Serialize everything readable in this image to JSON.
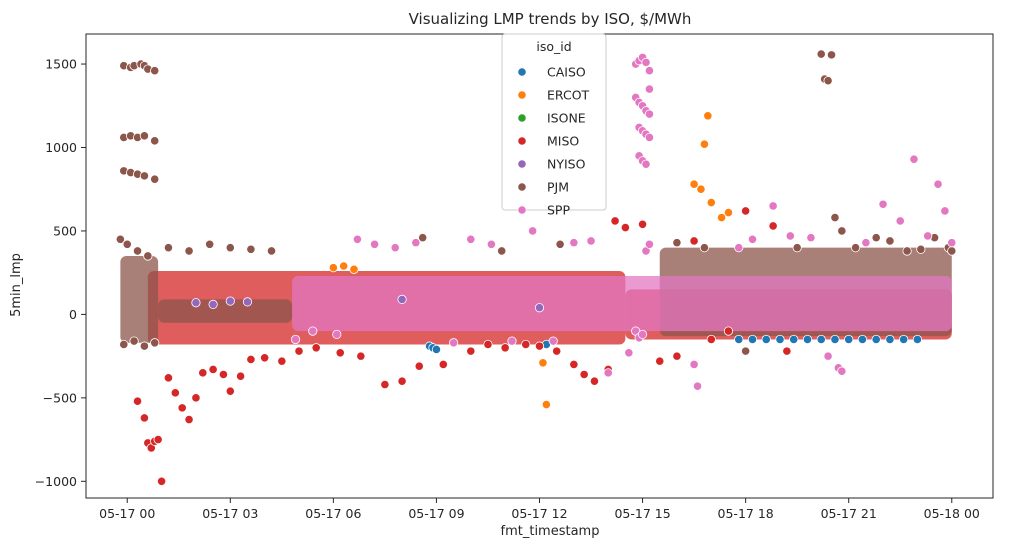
{
  "chart_data": {
    "type": "scatter",
    "title": "Visualizing LMP trends by ISO, $/MWh",
    "xlabel": "fmt_timestamp",
    "ylabel": "5min_lmp",
    "x_ticks": [
      {
        "hours": 0,
        "label": "05-17 00"
      },
      {
        "hours": 3,
        "label": "05-17 03"
      },
      {
        "hours": 6,
        "label": "05-17 06"
      },
      {
        "hours": 9,
        "label": "05-17 09"
      },
      {
        "hours": 12,
        "label": "05-17 12"
      },
      {
        "hours": 15,
        "label": "05-17 15"
      },
      {
        "hours": 18,
        "label": "05-17 18"
      },
      {
        "hours": 21,
        "label": "05-17 21"
      },
      {
        "hours": 24,
        "label": "05-18 00"
      }
    ],
    "xlim_hours": [
      -1.2,
      25.2
    ],
    "y_ticks": [
      -1000,
      -500,
      0,
      500,
      1000,
      1500
    ],
    "ylim": [
      -1100,
      1680
    ],
    "grid": false,
    "legend": {
      "title": "iso_id",
      "position": "upper-center"
    },
    "series": [
      {
        "name": "CAISO",
        "color": "#1f77b4",
        "x_hours": [
          8.8,
          8.9,
          9.0,
          12.2,
          17.8,
          18.2,
          18.6,
          19.0,
          19.4,
          19.8,
          20.2,
          20.6,
          21.0,
          21.4,
          21.8,
          22.2,
          22.6,
          23.0
        ],
        "y": [
          -190,
          -200,
          -210,
          -180,
          -150,
          -150,
          -150,
          -150,
          -150,
          -150,
          -150,
          -150,
          -150,
          -150,
          -150,
          -150,
          -150,
          -150
        ]
      },
      {
        "name": "ERCOT",
        "color": "#ff7f0e",
        "x_hours": [
          6.0,
          6.3,
          6.6,
          12.1,
          12.2,
          16.5,
          16.7,
          16.8,
          16.9,
          17.0,
          17.3,
          17.5
        ],
        "y": [
          280,
          290,
          270,
          -290,
          -540,
          780,
          750,
          1020,
          1190,
          670,
          580,
          610
        ]
      },
      {
        "name": "ISONE",
        "color": "#2ca02c",
        "x_hours": [],
        "y": []
      },
      {
        "name": "MISO",
        "color": "#d62728",
        "x_hours": [
          0.3,
          0.5,
          0.6,
          0.7,
          0.8,
          0.9,
          1.0,
          1.2,
          1.4,
          1.6,
          1.8,
          2.0,
          2.2,
          2.5,
          2.8,
          3.0,
          3.3,
          3.6,
          4.0,
          4.5,
          5.0,
          5.5,
          6.2,
          6.8,
          7.5,
          8.0,
          8.5,
          9.2,
          10.0,
          10.5,
          11.0,
          11.6,
          12.0,
          12.5,
          13.0,
          13.3,
          13.6,
          14.0,
          14.2,
          14.5,
          15.0,
          15.5,
          16.0,
          16.5,
          17.0,
          17.5,
          18.0,
          18.8,
          19.2
        ],
        "y": [
          -520,
          -620,
          -770,
          -800,
          -760,
          -750,
          -1000,
          -380,
          -470,
          -560,
          -630,
          -500,
          -350,
          -330,
          -360,
          -460,
          -370,
          -270,
          -260,
          -280,
          -220,
          -200,
          -230,
          -250,
          -420,
          -400,
          -310,
          -300,
          -220,
          -180,
          -200,
          -180,
          -190,
          -220,
          -300,
          -360,
          -400,
          -330,
          560,
          520,
          540,
          -280,
          -250,
          440,
          -150,
          -100,
          620,
          530,
          -220
        ]
      },
      {
        "name": "NYISO",
        "color": "#9467bd",
        "x_hours": [
          2.0,
          2.5,
          3.0,
          3.5,
          8.0,
          12.0
        ],
        "y": [
          70,
          60,
          80,
          75,
          90,
          40
        ]
      },
      {
        "name": "PJM",
        "color": "#8c564b",
        "x_hours": [
          -0.1,
          0.1,
          0.2,
          0.4,
          0.5,
          0.6,
          0.8,
          -0.1,
          0.1,
          0.3,
          0.5,
          0.8,
          -0.1,
          0.1,
          0.3,
          0.5,
          0.8,
          -0.2,
          0.0,
          0.3,
          0.6,
          -0.1,
          0.2,
          0.5,
          0.8,
          1.2,
          1.8,
          2.4,
          3.0,
          3.6,
          4.2,
          8.6,
          10.9,
          12.6,
          16.0,
          16.8,
          18.0,
          19.5,
          20.2,
          20.3,
          20.4,
          20.5,
          20.6,
          20.8,
          21.2,
          21.8,
          22.2,
          22.7,
          23.1,
          23.5,
          23.9,
          24.0
        ],
        "y": [
          1490,
          1480,
          1490,
          1500,
          1490,
          1470,
          1460,
          1060,
          1070,
          1060,
          1070,
          1040,
          860,
          850,
          840,
          830,
          810,
          450,
          420,
          380,
          350,
          -180,
          -160,
          -190,
          -170,
          400,
          380,
          420,
          400,
          390,
          380,
          460,
          380,
          420,
          430,
          400,
          -220,
          400,
          1560,
          1410,
          1400,
          1555,
          580,
          500,
          400,
          460,
          440,
          380,
          390,
          460,
          400,
          380
        ]
      },
      {
        "name": "SPP",
        "color": "#e377c2",
        "x_hours": [
          4.9,
          5.4,
          6.1,
          6.7,
          7.2,
          7.8,
          8.4,
          9.5,
          10.0,
          10.6,
          11.2,
          11.8,
          12.4,
          13.0,
          13.5,
          14.0,
          14.6,
          14.8,
          14.9,
          15.0,
          15.1,
          15.2,
          14.8,
          14.9,
          15.0,
          15.1,
          15.2,
          14.9,
          15.0,
          15.1,
          15.2,
          14.9,
          15.0,
          15.1,
          15.2,
          14.8,
          14.9,
          15.0,
          15.1,
          15.2,
          16.5,
          16.6,
          17.8,
          18.2,
          18.8,
          19.3,
          19.9,
          20.4,
          20.7,
          20.8,
          21.5,
          22.0,
          22.5,
          22.9,
          23.3,
          23.6,
          23.8,
          24.0
        ],
        "y": [
          -150,
          -100,
          -120,
          450,
          420,
          400,
          430,
          -170,
          450,
          420,
          -160,
          500,
          -160,
          430,
          440,
          -350,
          -230,
          1500,
          1520,
          1540,
          1510,
          1460,
          1300,
          1270,
          1250,
          1220,
          1200,
          1120,
          1100,
          1080,
          1060,
          950,
          920,
          900,
          1350,
          -100,
          -140,
          -120,
          380,
          420,
          -300,
          -430,
          400,
          450,
          650,
          470,
          460,
          -250,
          -320,
          -340,
          430,
          660,
          560,
          930,
          470,
          780,
          620,
          430
        ]
      }
    ],
    "bands": [
      {
        "series": "MISO",
        "x_from": 0.6,
        "x_to": 14.5,
        "y_low": -180,
        "y_high": 260
      },
      {
        "series": "MISO",
        "x_from": 14.5,
        "x_to": 24.0,
        "y_low": -150,
        "y_high": 150
      },
      {
        "series": "PJM",
        "x_from": -0.2,
        "x_to": 0.9,
        "y_low": -170,
        "y_high": 350
      },
      {
        "series": "PJM",
        "x_from": 0.9,
        "x_to": 4.8,
        "y_low": -50,
        "y_high": 90
      },
      {
        "series": "PJM",
        "x_from": 15.5,
        "x_to": 24.0,
        "y_low": -130,
        "y_high": 400
      },
      {
        "series": "SPP",
        "x_from": 4.8,
        "x_to": 24.0,
        "y_low": -100,
        "y_high": 230
      }
    ]
  }
}
